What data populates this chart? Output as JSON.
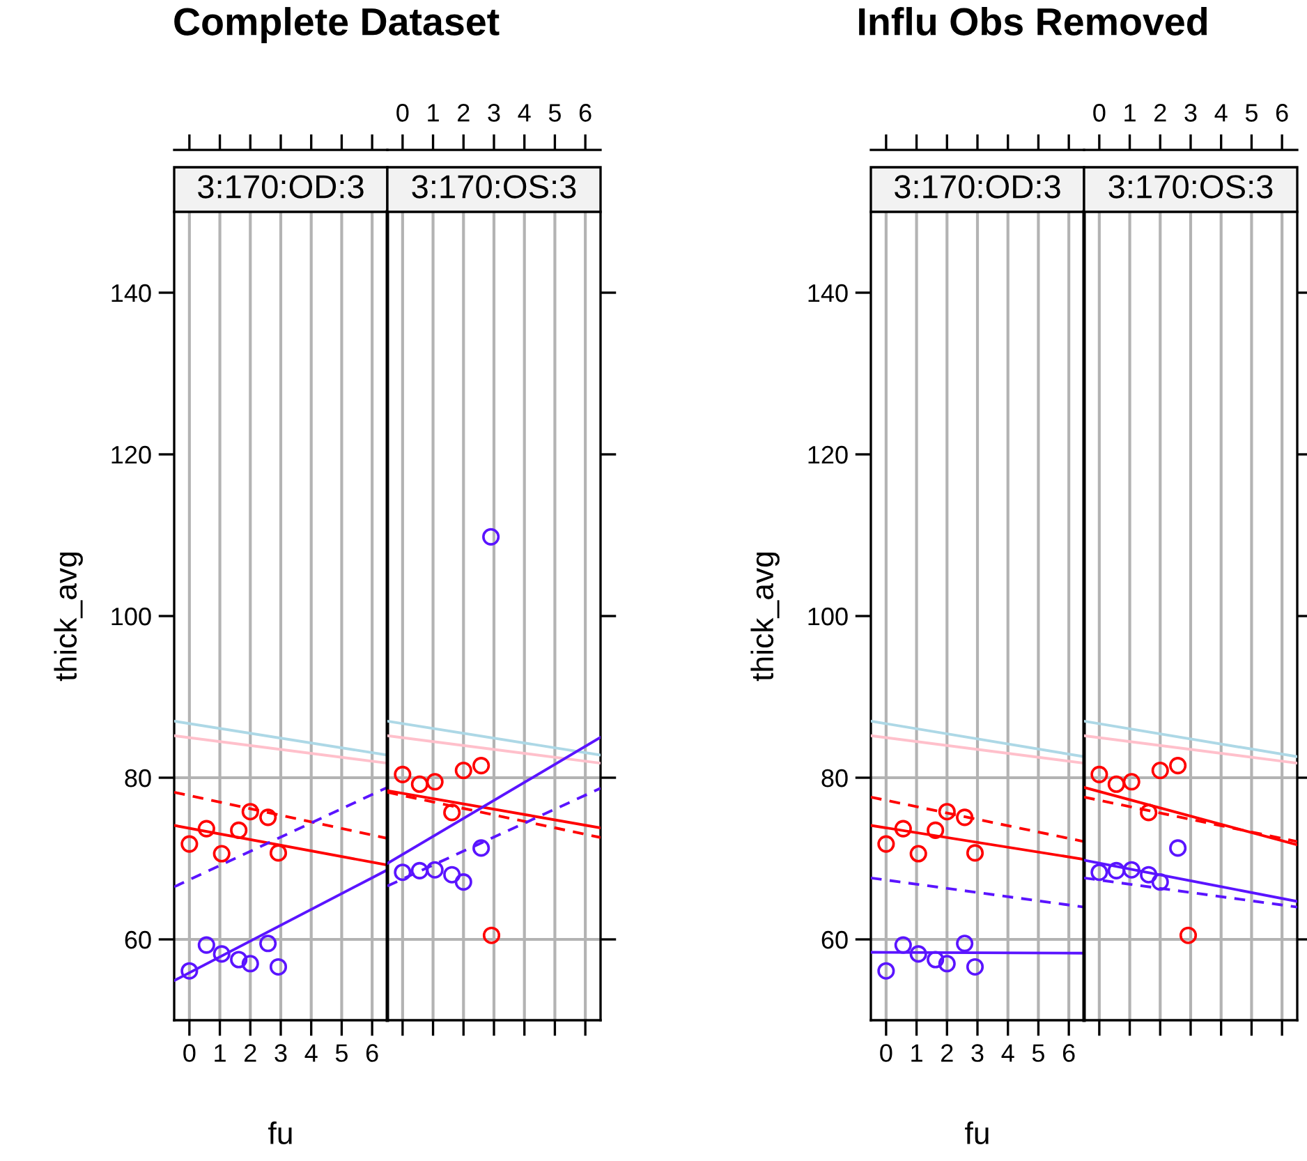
{
  "chart_data": [
    {
      "type": "scatter",
      "title": "Complete Dataset",
      "subtitle": "3:170:OD:3",
      "xlabel": "fu",
      "ylabel": "thick_avg",
      "xlim": [
        -0.5,
        6.5
      ],
      "xticks": [
        0,
        1,
        2,
        3,
        4,
        5,
        6
      ],
      "ylim": [
        50,
        150
      ],
      "yticks": [
        60,
        80,
        100,
        120,
        140
      ],
      "grid": "x",
      "ref_lines": [
        {
          "axis": "y",
          "value": 60,
          "color": "#b3b3b3"
        },
        {
          "axis": "y",
          "value": 80,
          "color": "#b3b3b3"
        }
      ],
      "series": [
        {
          "marker": "circle",
          "color": "#ff0000",
          "x": [
            0,
            0.56,
            1.06,
            1.62,
            2.0,
            2.58,
            2.92
          ],
          "values": [
            71.8,
            73.7,
            70.6,
            73.5,
            75.8,
            75.1,
            70.7
          ]
        },
        {
          "marker": "circle",
          "color": "#5a14ff",
          "x": [
            0,
            0.56,
            1.06,
            1.62,
            2.0,
            2.58,
            2.92
          ],
          "values": [
            56.1,
            59.3,
            58.2,
            57.5,
            57.0,
            59.5,
            56.6
          ]
        },
        {
          "type": "line",
          "marker": "none",
          "color": "#add8e6",
          "line_style": "solid",
          "x": [
            -0.5,
            6.5
          ],
          "values": [
            87.0,
            82.8
          ]
        },
        {
          "type": "line",
          "marker": "none",
          "color": "#ffc0cb",
          "line_style": "solid",
          "x": [
            -0.5,
            6.5
          ],
          "values": [
            85.2,
            81.8
          ]
        },
        {
          "type": "line",
          "marker": "none",
          "color": "#ff0000",
          "line_style": "dashed",
          "x": [
            -0.5,
            6.5
          ],
          "values": [
            78.2,
            72.5
          ]
        },
        {
          "type": "line",
          "marker": "none",
          "color": "#ff0000",
          "line_style": "solid",
          "x": [
            -0.5,
            6.5
          ],
          "values": [
            74.1,
            69.2
          ]
        },
        {
          "type": "line",
          "marker": "none",
          "color": "#5a14ff",
          "line_style": "dashed",
          "x": [
            -0.5,
            6.5
          ],
          "values": [
            66.5,
            78.8
          ]
        },
        {
          "type": "line",
          "marker": "none",
          "color": "#5a14ff",
          "line_style": "solid",
          "x": [
            -0.5,
            6.5
          ],
          "values": [
            54.9,
            68.6
          ]
        }
      ]
    },
    {
      "type": "scatter",
      "subtitle": "3:170:OS:3",
      "xlim": [
        -0.5,
        6.5
      ],
      "xticks": [
        0,
        1,
        2,
        3,
        4,
        5,
        6
      ],
      "ylim": [
        50,
        150
      ],
      "yticks": [
        60,
        80,
        100,
        120,
        140
      ],
      "grid": "x",
      "tick_labels": "x",
      "ref_lines": [
        {
          "axis": "y",
          "value": 60,
          "color": "#b3b3b3"
        },
        {
          "axis": "y",
          "value": 80,
          "color": "#b3b3b3"
        }
      ],
      "series": [
        {
          "marker": "circle",
          "color": "#ff0000",
          "x": [
            0,
            0.56,
            1.06,
            1.62,
            2.0,
            2.58,
            2.92
          ],
          "values": [
            80.4,
            79.2,
            79.5,
            75.7,
            80.9,
            81.5,
            60.5
          ]
        },
        {
          "marker": "circle",
          "color": "#5a14ff",
          "x": [
            0,
            0.56,
            1.06,
            1.62,
            2.0,
            2.58,
            2.9
          ],
          "values": [
            68.3,
            68.5,
            68.6,
            68.0,
            67.1,
            71.3,
            109.8
          ]
        },
        {
          "type": "line",
          "marker": "none",
          "color": "#add8e6",
          "line_style": "solid",
          "x": [
            -0.5,
            6.5
          ],
          "values": [
            87.0,
            82.8
          ]
        },
        {
          "type": "line",
          "marker": "none",
          "color": "#ffc0cb",
          "line_style": "solid",
          "x": [
            -0.5,
            6.5
          ],
          "values": [
            85.2,
            81.8
          ]
        },
        {
          "type": "line",
          "marker": "none",
          "color": "#ff0000",
          "line_style": "solid",
          "x": [
            -0.5,
            6.5
          ],
          "values": [
            78.4,
            73.8
          ]
        },
        {
          "type": "line",
          "marker": "none",
          "color": "#ff0000",
          "line_style": "dashed",
          "x": [
            -0.5,
            6.5
          ],
          "values": [
            78.2,
            72.6
          ]
        },
        {
          "type": "line",
          "marker": "none",
          "color": "#5a14ff",
          "line_style": "solid",
          "x": [
            -0.5,
            6.5
          ],
          "values": [
            69.4,
            85.0
          ]
        },
        {
          "type": "line",
          "marker": "none",
          "color": "#5a14ff",
          "line_style": "dashed",
          "x": [
            -0.5,
            6.5
          ],
          "values": [
            66.6,
            78.7
          ]
        }
      ]
    },
    {
      "type": "scatter",
      "title": "Influ Obs Removed",
      "subtitle": "3:170:OD:3",
      "xlabel": "fu",
      "ylabel": "thick_avg",
      "xlim": [
        -0.5,
        6.5
      ],
      "xticks": [
        0,
        1,
        2,
        3,
        4,
        5,
        6
      ],
      "ylim": [
        50,
        150
      ],
      "yticks": [
        60,
        80,
        100,
        120,
        140
      ],
      "grid": "x",
      "ref_lines": [
        {
          "axis": "y",
          "value": 60,
          "color": "#b3b3b3"
        },
        {
          "axis": "y",
          "value": 80,
          "color": "#b3b3b3"
        }
      ],
      "series": [
        {
          "marker": "circle",
          "color": "#ff0000",
          "x": [
            0,
            0.56,
            1.06,
            1.62,
            2.0,
            2.58,
            2.92
          ],
          "values": [
            71.8,
            73.7,
            70.6,
            73.5,
            75.8,
            75.1,
            70.7
          ]
        },
        {
          "marker": "circle",
          "color": "#5a14ff",
          "x": [
            0,
            0.56,
            1.06,
            1.62,
            2.0,
            2.58,
            2.92
          ],
          "values": [
            56.1,
            59.3,
            58.2,
            57.5,
            57.0,
            59.5,
            56.6
          ]
        },
        {
          "type": "line",
          "marker": "none",
          "color": "#add8e6",
          "line_style": "solid",
          "x": [
            -0.5,
            6.5
          ],
          "values": [
            87.0,
            82.6
          ]
        },
        {
          "type": "line",
          "marker": "none",
          "color": "#ffc0cb",
          "line_style": "solid",
          "x": [
            -0.5,
            6.5
          ],
          "values": [
            85.2,
            81.8
          ]
        },
        {
          "type": "line",
          "marker": "none",
          "color": "#ff0000",
          "line_style": "dashed",
          "x": [
            -0.5,
            6.5
          ],
          "values": [
            77.6,
            72.1
          ]
        },
        {
          "type": "line",
          "marker": "none",
          "color": "#ff0000",
          "line_style": "solid",
          "x": [
            -0.5,
            6.5
          ],
          "values": [
            74.1,
            69.9
          ]
        },
        {
          "type": "line",
          "marker": "none",
          "color": "#5a14ff",
          "line_style": "dashed",
          "x": [
            -0.5,
            6.5
          ],
          "values": [
            67.6,
            64.0
          ]
        },
        {
          "type": "line",
          "marker": "none",
          "color": "#5a14ff",
          "line_style": "solid",
          "x": [
            -0.5,
            6.5
          ],
          "values": [
            58.4,
            58.3
          ]
        }
      ]
    },
    {
      "type": "scatter",
      "subtitle": "3:170:OS:3",
      "xlim": [
        -0.5,
        6.5
      ],
      "xticks": [
        0,
        1,
        2,
        3,
        4,
        5,
        6
      ],
      "ylim": [
        50,
        150
      ],
      "yticks": [
        60,
        80,
        100,
        120,
        140
      ],
      "grid": "x",
      "tick_labels": "x",
      "ref_lines": [
        {
          "axis": "y",
          "value": 60,
          "color": "#b3b3b3"
        },
        {
          "axis": "y",
          "value": 80,
          "color": "#b3b3b3"
        }
      ],
      "series": [
        {
          "marker": "circle",
          "color": "#ff0000",
          "x": [
            0,
            0.56,
            1.06,
            1.62,
            2.0,
            2.58,
            2.92
          ],
          "values": [
            80.4,
            79.2,
            79.5,
            75.7,
            80.9,
            81.5,
            60.5
          ]
        },
        {
          "marker": "circle",
          "color": "#5a14ff",
          "x": [
            0,
            0.56,
            1.06,
            1.62,
            2.0,
            2.58
          ],
          "values": [
            68.3,
            68.5,
            68.6,
            68.0,
            67.1,
            71.3
          ]
        },
        {
          "type": "line",
          "marker": "none",
          "color": "#add8e6",
          "line_style": "solid",
          "x": [
            -0.5,
            6.5
          ],
          "values": [
            87.0,
            82.6
          ]
        },
        {
          "type": "line",
          "marker": "none",
          "color": "#ffc0cb",
          "line_style": "solid",
          "x": [
            -0.5,
            6.5
          ],
          "values": [
            85.2,
            81.8
          ]
        },
        {
          "type": "line",
          "marker": "none",
          "color": "#ff0000",
          "line_style": "solid",
          "x": [
            -0.5,
            6.5
          ],
          "values": [
            78.8,
            71.7
          ]
        },
        {
          "type": "line",
          "marker": "none",
          "color": "#ff0000",
          "line_style": "dashed",
          "x": [
            -0.5,
            6.5
          ],
          "values": [
            77.6,
            72.1
          ]
        },
        {
          "type": "line",
          "marker": "none",
          "color": "#5a14ff",
          "line_style": "solid",
          "x": [
            -0.5,
            6.5
          ],
          "values": [
            69.8,
            64.7
          ]
        },
        {
          "type": "line",
          "marker": "none",
          "color": "#5a14ff",
          "line_style": "dashed",
          "x": [
            -0.5,
            6.5
          ],
          "values": [
            67.6,
            64.0
          ]
        }
      ]
    }
  ]
}
